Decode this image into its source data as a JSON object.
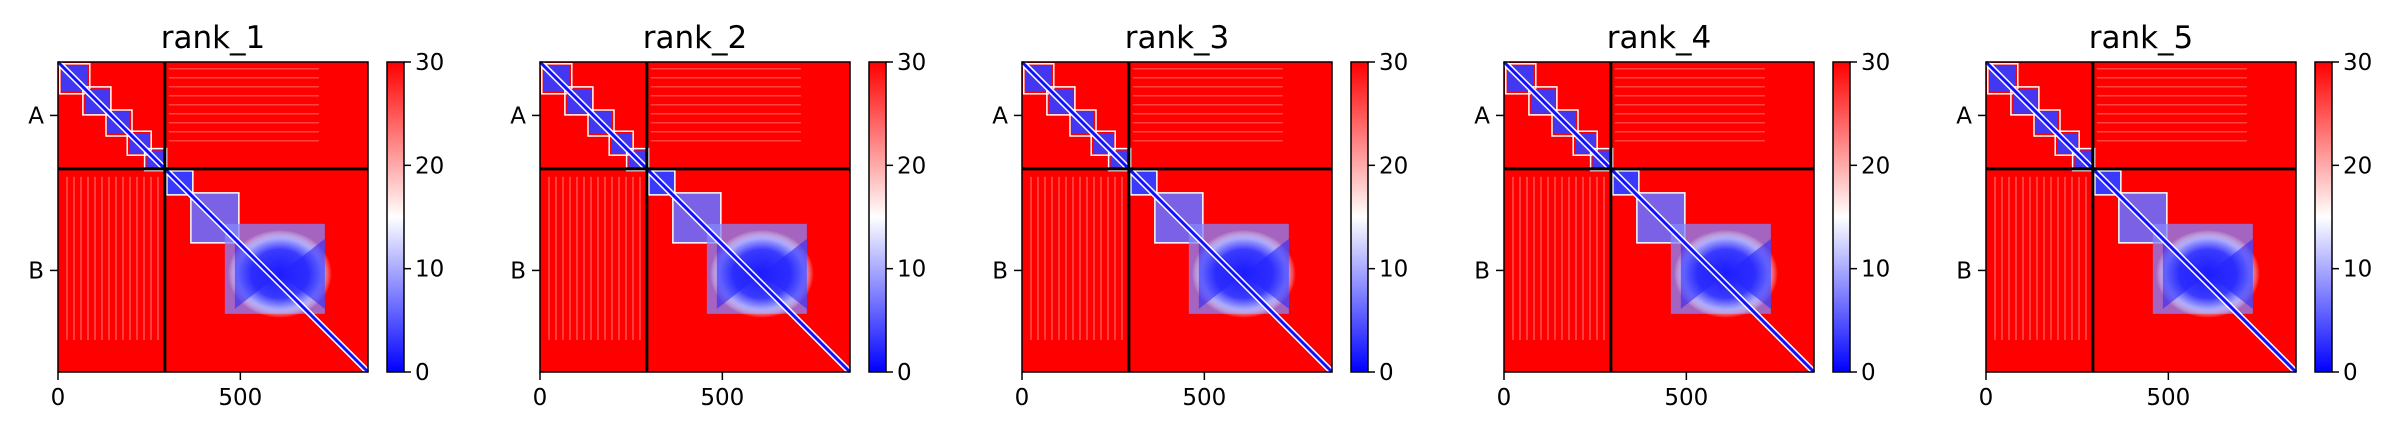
{
  "chart_data": [
    {
      "type": "heatmap",
      "title": "rank_1",
      "xticks": [
        0,
        500
      ],
      "x_extent": [
        0,
        850
      ],
      "chain_labels": [
        "A",
        "B"
      ],
      "chain_boundary": 293,
      "colorbar": {
        "min": 0,
        "max": 30,
        "ticks": [
          0,
          10,
          20,
          30
        ],
        "colors": [
          "#0000ff",
          "#ffffff",
          "#ff0000"
        ]
      }
    },
    {
      "type": "heatmap",
      "title": "rank_2",
      "xticks": [
        0,
        500
      ],
      "x_extent": [
        0,
        850
      ],
      "chain_labels": [
        "A",
        "B"
      ],
      "chain_boundary": 293,
      "colorbar": {
        "min": 0,
        "max": 30,
        "ticks": [
          0,
          10,
          20,
          30
        ],
        "colors": [
          "#0000ff",
          "#ffffff",
          "#ff0000"
        ]
      }
    },
    {
      "type": "heatmap",
      "title": "rank_3",
      "xticks": [
        0,
        500
      ],
      "x_extent": [
        0,
        850
      ],
      "chain_labels": [
        "A",
        "B"
      ],
      "chain_boundary": 293,
      "colorbar": {
        "min": 0,
        "max": 30,
        "ticks": [
          0,
          10,
          20,
          30
        ],
        "colors": [
          "#0000ff",
          "#ffffff",
          "#ff0000"
        ]
      }
    },
    {
      "type": "heatmap",
      "title": "rank_4",
      "xticks": [
        0,
        500
      ],
      "x_extent": [
        0,
        850
      ],
      "chain_labels": [
        "A",
        "B"
      ],
      "chain_boundary": 293,
      "colorbar": {
        "min": 0,
        "max": 30,
        "ticks": [
          0,
          10,
          20,
          30
        ],
        "colors": [
          "#0000ff",
          "#ffffff",
          "#ff0000"
        ]
      }
    },
    {
      "type": "heatmap",
      "title": "rank_5",
      "xticks": [
        0,
        500
      ],
      "x_extent": [
        0,
        850
      ],
      "chain_labels": [
        "A",
        "B"
      ],
      "chain_boundary": 293,
      "colorbar": {
        "min": 0,
        "max": 30,
        "ticks": [
          0,
          10,
          20,
          30
        ],
        "colors": [
          "#0000ff",
          "#ffffff",
          "#ff0000"
        ]
      }
    }
  ]
}
